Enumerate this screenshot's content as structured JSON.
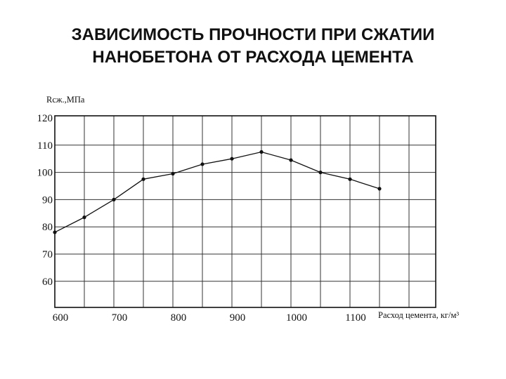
{
  "title": {
    "line1": "ЗАВИСИМОСТЬ ПРОЧНОСТИ ПРИ СЖАТИИ",
    "line2": "НАНОБЕТОНА ОТ РАСХОДА ЦЕМЕНТА"
  },
  "chart_data": {
    "type": "line",
    "title": "ЗАВИСИМОСТЬ ПРОЧНОСТИ ПРИ СЖАТИИ НАНОБЕТОНА ОТ РАСХОДА ЦЕМЕНТА",
    "ylabel": "Rсж.,МПа",
    "xlabel": "Расход цемента, кг/м³",
    "x_ticks": [
      600,
      700,
      800,
      900,
      1000,
      1100
    ],
    "y_ticks": [
      60,
      70,
      80,
      90,
      100,
      110,
      120
    ],
    "grid": true,
    "series": [
      {
        "x": [
          600,
          650,
          700,
          750,
          800,
          850,
          900,
          950,
          1000,
          1050,
          1100,
          1150
        ],
        "values": [
          78,
          83.5,
          90,
          97.5,
          99.5,
          103,
          105,
          107.5,
          104.5,
          100,
          97.5,
          94
        ]
      }
    ],
    "colors": {
      "line": "#111111",
      "grid": "#333333",
      "frame": "#111111"
    }
  }
}
